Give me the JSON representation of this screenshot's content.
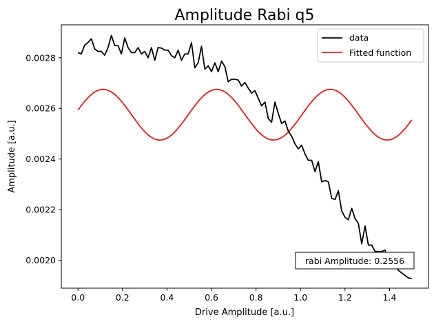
{
  "chart_data": {
    "type": "line",
    "title": "Amplitude Rabi q5",
    "xlabel": "Drive Amplitude [a.u.]",
    "ylabel": "Amplitude [a.u.]",
    "xlim": [
      -0.075,
      1.575
    ],
    "ylim": [
      0.00189,
      0.00293
    ],
    "xticks": [
      0.0,
      0.2,
      0.4,
      0.6,
      0.8,
      1.0,
      1.2,
      1.4
    ],
    "xtick_labels": [
      "0.0",
      "0.2",
      "0.4",
      "0.6",
      "0.8",
      "1.0",
      "1.2",
      "1.4"
    ],
    "yticks": [
      0.002,
      0.0022,
      0.0024,
      0.0026,
      0.0028
    ],
    "ytick_labels": [
      "0.0020",
      "0.0022",
      "0.0024",
      "0.0026",
      "0.0028"
    ],
    "grid": false,
    "legend_position": "top-right",
    "annotation": "rabi Amplitude: 0.2556",
    "series": [
      {
        "name": "data",
        "color": "#000000",
        "x": [
          0.0,
          0.015,
          0.03,
          0.045,
          0.06,
          0.075,
          0.09,
          0.105,
          0.12,
          0.135,
          0.15,
          0.165,
          0.18,
          0.195,
          0.21,
          0.225,
          0.24,
          0.255,
          0.27,
          0.285,
          0.3,
          0.315,
          0.33,
          0.345,
          0.36,
          0.375,
          0.39,
          0.405,
          0.42,
          0.435,
          0.45,
          0.465,
          0.48,
          0.495,
          0.51,
          0.525,
          0.54,
          0.555,
          0.57,
          0.585,
          0.6,
          0.615,
          0.63,
          0.645,
          0.66,
          0.675,
          0.69,
          0.705,
          0.72,
          0.735,
          0.75,
          0.765,
          0.78,
          0.795,
          0.81,
          0.825,
          0.84,
          0.855,
          0.87,
          0.885,
          0.9,
          0.915,
          0.93,
          0.945,
          0.96,
          0.975,
          0.99,
          1.005,
          1.02,
          1.035,
          1.05,
          1.065,
          1.08,
          1.095,
          1.11,
          1.125,
          1.14,
          1.155,
          1.17,
          1.185,
          1.2,
          1.215,
          1.23,
          1.245,
          1.26,
          1.275,
          1.29,
          1.305,
          1.32,
          1.335,
          1.35,
          1.365,
          1.38,
          1.395,
          1.41,
          1.425,
          1.44,
          1.455,
          1.47,
          1.485,
          1.5
        ],
        "y": [
          0.00282,
          0.002815,
          0.00285,
          0.00286,
          0.002875,
          0.002835,
          0.002825,
          0.002825,
          0.00281,
          0.00284,
          0.002888,
          0.002848,
          0.002848,
          0.002815,
          0.002878,
          0.00284,
          0.00282,
          0.00282,
          0.00284,
          0.002815,
          0.002825,
          0.0028,
          0.00284,
          0.00279,
          0.00284,
          0.002838,
          0.00283,
          0.00283,
          0.002808,
          0.0028,
          0.00283,
          0.00279,
          0.002815,
          0.002815,
          0.00286,
          0.00276,
          0.00278,
          0.002845,
          0.002755,
          0.002768,
          0.002745,
          0.00278,
          0.002745,
          0.002787,
          0.002765,
          0.002705,
          0.002715,
          0.002715,
          0.002712,
          0.002688,
          0.002702,
          0.00268,
          0.00266,
          0.00267,
          0.00264,
          0.00261,
          0.002625,
          0.00256,
          0.002545,
          0.002625,
          0.00258,
          0.00254,
          0.00255,
          0.00251,
          0.00249,
          0.00246,
          0.00244,
          0.002455,
          0.00242,
          0.002395,
          0.002395,
          0.00235,
          0.00239,
          0.00231,
          0.002315,
          0.00231,
          0.002245,
          0.00224,
          0.002275,
          0.002195,
          0.00217,
          0.00216,
          0.002205,
          0.002165,
          0.002145,
          0.002065,
          0.002135,
          0.00206,
          0.00206,
          0.002035,
          0.002035,
          0.002035,
          0.00204,
          0.002,
          0.00199,
          0.00198,
          0.00196,
          0.00195,
          0.00194,
          0.00193,
          0.001928
        ]
      },
      {
        "name": "Fitted function",
        "color": "#e41a1c",
        "function": "offset + amplitude * sin(2*pi*frequency*x + phase)",
        "offset": 0.002575,
        "amplitude": 0.0001,
        "frequency": 1.9589,
        "phase": 0.1823,
        "x_range": [
          0.0,
          1.5
        ]
      }
    ]
  }
}
